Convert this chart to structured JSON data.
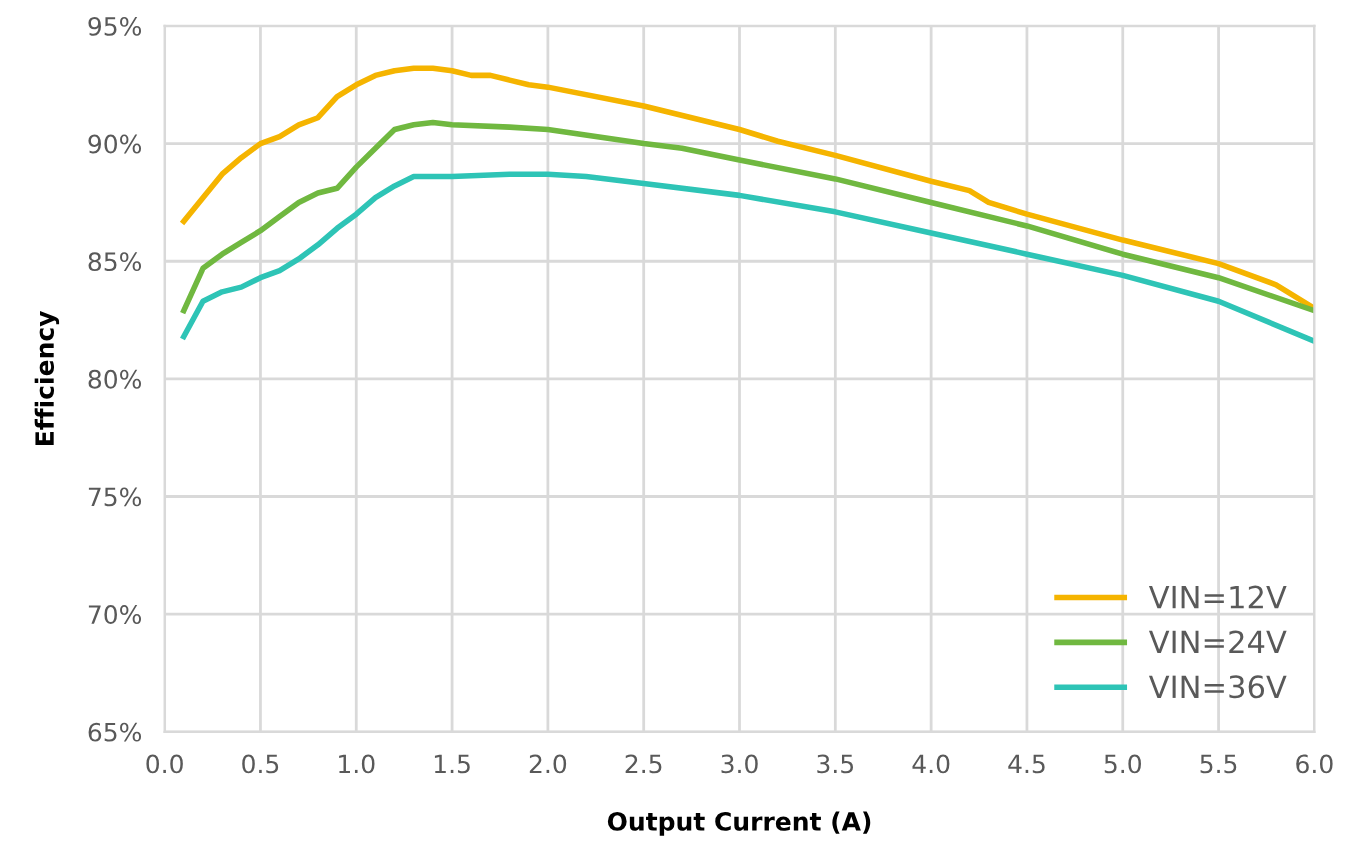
{
  "chart_data": {
    "type": "line",
    "xlabel": "Output Current (A)",
    "ylabel": "Efficiency",
    "xlim": [
      0,
      6
    ],
    "ylim": [
      65,
      95
    ],
    "xticks": [
      {
        "value": 0,
        "label": "0.0"
      },
      {
        "value": 0.5,
        "label": "0.5"
      },
      {
        "value": 1,
        "label": "1.0"
      },
      {
        "value": 1.5,
        "label": "1.5"
      },
      {
        "value": 2,
        "label": "2.0"
      },
      {
        "value": 2.5,
        "label": "2.5"
      },
      {
        "value": 3,
        "label": "3.0"
      },
      {
        "value": 3.5,
        "label": "3.5"
      },
      {
        "value": 4,
        "label": "4.0"
      },
      {
        "value": 4.5,
        "label": "4.5"
      },
      {
        "value": 5,
        "label": "5.0"
      },
      {
        "value": 5.5,
        "label": "5.5"
      },
      {
        "value": 6,
        "label": "6.0"
      }
    ],
    "yticks": [
      {
        "value": 65,
        "label": "65%"
      },
      {
        "value": 70,
        "label": "70%"
      },
      {
        "value": 75,
        "label": "75%"
      },
      {
        "value": 80,
        "label": "80%"
      },
      {
        "value": 85,
        "label": "85%"
      },
      {
        "value": 90,
        "label": "90%"
      },
      {
        "value": 95,
        "label": "95%"
      }
    ],
    "grid": true,
    "legend": "bottom right",
    "marker": "none",
    "line_style": "solid",
    "series": [
      {
        "name": "VIN=12V",
        "color": "#f5b400",
        "x": [
          0.1,
          0.2,
          0.3,
          0.4,
          0.5,
          0.6,
          0.7,
          0.8,
          0.9,
          1.0,
          1.1,
          1.2,
          1.3,
          1.4,
          1.5,
          1.6,
          1.7,
          1.8,
          1.9,
          2.0,
          2.5,
          3.0,
          3.2,
          3.5,
          4.0,
          4.2,
          4.3,
          4.5,
          5.0,
          5.5,
          5.8,
          6.0
        ],
        "values": [
          86.7,
          87.7,
          88.7,
          89.4,
          90.0,
          90.3,
          90.8,
          91.1,
          92.0,
          92.5,
          92.9,
          93.1,
          93.2,
          93.2,
          93.1,
          92.9,
          92.9,
          92.7,
          92.5,
          92.4,
          91.6,
          90.6,
          90.1,
          89.5,
          88.4,
          88.0,
          87.5,
          87.0,
          85.9,
          84.9,
          84.0,
          83.0
        ]
      },
      {
        "name": "VIN=24V",
        "color": "#70b840",
        "x": [
          0.1,
          0.2,
          0.3,
          0.4,
          0.5,
          0.6,
          0.7,
          0.8,
          0.9,
          1.0,
          1.1,
          1.2,
          1.3,
          1.4,
          1.5,
          1.8,
          2.0,
          2.5,
          2.7,
          3.0,
          3.5,
          4.0,
          4.5,
          5.0,
          5.5,
          6.0
        ],
        "values": [
          82.9,
          84.7,
          85.3,
          85.8,
          86.3,
          86.9,
          87.5,
          87.9,
          88.1,
          89.0,
          89.8,
          90.6,
          90.8,
          90.9,
          90.8,
          90.7,
          90.6,
          90.0,
          89.8,
          89.3,
          88.5,
          87.5,
          86.5,
          85.3,
          84.3,
          82.9
        ]
      },
      {
        "name": "VIN=36V",
        "color": "#2ec4b6",
        "x": [
          0.1,
          0.2,
          0.3,
          0.4,
          0.5,
          0.6,
          0.7,
          0.8,
          0.9,
          1.0,
          1.1,
          1.2,
          1.3,
          1.4,
          1.5,
          1.8,
          2.0,
          2.2,
          2.5,
          3.0,
          3.5,
          4.0,
          4.5,
          5.0,
          5.5,
          6.0
        ],
        "values": [
          81.8,
          83.3,
          83.7,
          83.9,
          84.3,
          84.6,
          85.1,
          85.7,
          86.4,
          87.0,
          87.7,
          88.2,
          88.6,
          88.6,
          88.6,
          88.7,
          88.7,
          88.6,
          88.3,
          87.8,
          87.1,
          86.2,
          85.3,
          84.4,
          83.3,
          81.6
        ]
      }
    ]
  }
}
